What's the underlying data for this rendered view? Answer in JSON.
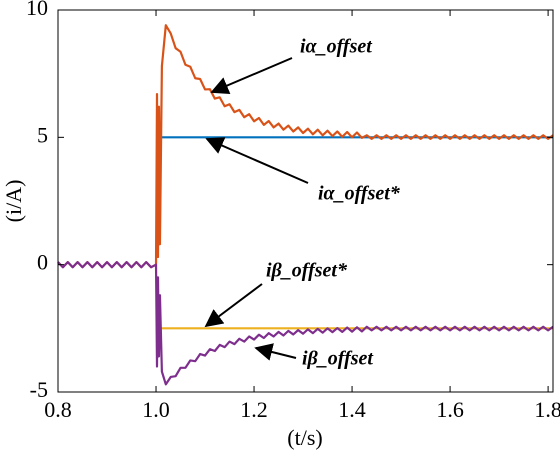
{
  "chart_data": {
    "type": "line",
    "xlabel": "(t/s)",
    "ylabel": "(i/A)",
    "xlim": [
      0.8,
      1.81
    ],
    "ylim": [
      -5,
      10
    ],
    "xticks": [
      0.8,
      {
        "value": 1,
        "label": "1.0"
      },
      1.2,
      1.4,
      1.6,
      1.8
    ],
    "yticks": [
      -5,
      0,
      5,
      10
    ],
    "grid": false,
    "x": [
      0.8,
      0.81,
      0.82,
      0.83,
      0.84,
      0.85,
      0.86,
      0.87,
      0.88,
      0.89,
      0.9,
      0.91,
      0.92,
      0.93,
      0.94,
      0.95,
      0.96,
      0.97,
      0.98,
      0.99,
      1.0,
      1.002,
      1.004,
      1.006,
      1.008,
      1.012,
      1.02,
      1.03,
      1.04,
      1.05,
      1.06,
      1.07,
      1.08,
      1.09,
      1.1,
      1.11,
      1.12,
      1.13,
      1.14,
      1.15,
      1.16,
      1.17,
      1.18,
      1.19,
      1.2,
      1.21,
      1.22,
      1.23,
      1.24,
      1.25,
      1.26,
      1.27,
      1.28,
      1.29,
      1.3,
      1.31,
      1.32,
      1.33,
      1.34,
      1.35,
      1.36,
      1.37,
      1.38,
      1.39,
      1.4,
      1.41,
      1.42,
      1.43,
      1.44,
      1.45,
      1.46,
      1.47,
      1.48,
      1.49,
      1.5,
      1.51,
      1.52,
      1.53,
      1.54,
      1.55,
      1.56,
      1.57,
      1.58,
      1.59,
      1.6,
      1.61,
      1.62,
      1.63,
      1.64,
      1.65,
      1.66,
      1.67,
      1.68,
      1.69,
      1.7,
      1.71,
      1.72,
      1.73,
      1.74,
      1.75,
      1.76,
      1.77,
      1.78,
      1.79,
      1.8,
      1.81
    ],
    "series": [
      {
        "name": "iα_offset",
        "color": "#d95319",
        "values": [
          0.1,
          -0.1,
          0.1,
          -0.1,
          0.1,
          -0.1,
          0.1,
          -0.1,
          0.1,
          -0.1,
          0.1,
          -0.1,
          0.1,
          -0.1,
          0.1,
          -0.1,
          0.1,
          -0.1,
          0.1,
          -0.1,
          0,
          6.7,
          0.3,
          6.2,
          0.8,
          7.8,
          9.4,
          9.08,
          8.5,
          8.36,
          7.85,
          7.77,
          7.32,
          7.29,
          6.88,
          6.89,
          6.52,
          6.57,
          6.22,
          6.3,
          5.99,
          6.08,
          5.79,
          5.91,
          5.63,
          5.76,
          5.49,
          5.64,
          5.39,
          5.54,
          5.3,
          5.46,
          5.23,
          5.39,
          5.17,
          5.34,
          5.12,
          5.3,
          5.08,
          5.26,
          5.05,
          5.23,
          5.02,
          5.21,
          5.0,
          5.19,
          4.98,
          5.08,
          4.94,
          5.08,
          4.94,
          5.08,
          4.94,
          5.08,
          4.94,
          5.08,
          4.94,
          5.08,
          4.94,
          5.08,
          4.94,
          5.08,
          4.94,
          5.08,
          4.94,
          5.08,
          4.94,
          5.08,
          4.94,
          5.08,
          4.94,
          5.08,
          4.94,
          5.08,
          4.94,
          5.08,
          4.94,
          5.08,
          4.94,
          5.08,
          4.94,
          5.08,
          4.94,
          5.08,
          4.94,
          5.08
        ]
      },
      {
        "name": "iα_offset*",
        "color": "#0072bd",
        "x": [
          1.0,
          1.81
        ],
        "values": [
          5,
          5
        ]
      },
      {
        "name": "iβ_offset*",
        "color": "#edb120",
        "x": [
          1.0,
          1.81
        ],
        "values": [
          -2.5,
          -2.5
        ]
      },
      {
        "name": "iβ_offset",
        "color": "#7e2f8e",
        "values": [
          0.1,
          -0.1,
          0.1,
          -0.1,
          0.1,
          -0.1,
          0.1,
          -0.1,
          0.1,
          -0.1,
          0.1,
          -0.1,
          0.1,
          -0.1,
          0.1,
          -0.1,
          0.1,
          -0.1,
          0.1,
          -0.1,
          0,
          -4.0,
          -0.5,
          -3.6,
          -1.2,
          -4.2,
          -4.7,
          -4.41,
          -4.38,
          -4.05,
          -4.05,
          -3.76,
          -3.79,
          -3.51,
          -3.57,
          -3.32,
          -3.39,
          -3.15,
          -3.24,
          -3.02,
          -3.12,
          -2.91,
          -3.02,
          -2.82,
          -2.94,
          -2.75,
          -2.88,
          -2.69,
          -2.82,
          -2.64,
          -2.78,
          -2.6,
          -2.74,
          -2.57,
          -2.71,
          -2.54,
          -2.69,
          -2.52,
          -2.67,
          -2.5,
          -2.65,
          -2.49,
          -2.64,
          -2.47,
          -2.63,
          -2.46,
          -2.62,
          -2.44,
          -2.58,
          -2.44,
          -2.58,
          -2.44,
          -2.58,
          -2.44,
          -2.58,
          -2.44,
          -2.58,
          -2.44,
          -2.58,
          -2.44,
          -2.58,
          -2.44,
          -2.58,
          -2.44,
          -2.58,
          -2.44,
          -2.58,
          -2.44,
          -2.58,
          -2.44,
          -2.58,
          -2.44,
          -2.58,
          -2.44,
          -2.58,
          -2.44,
          -2.58,
          -2.44,
          -2.58,
          -2.44,
          -2.58,
          -2.44,
          -2.58,
          -2.44,
          -2.58,
          -2.44
        ]
      }
    ]
  }
}
